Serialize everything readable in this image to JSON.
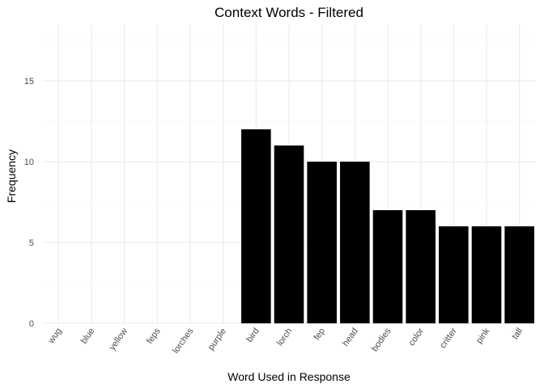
{
  "chart_data": {
    "type": "bar",
    "title": "Context Words - Filtered",
    "xlabel": "Word Used in Response",
    "ylabel": "Frequency",
    "categories": [
      "wug",
      "blue",
      "yellow",
      "feps",
      "lorches",
      "purple",
      "bird",
      "lorch",
      "fep",
      "head",
      "bodies",
      "color",
      "critter",
      "pink",
      "tall"
    ],
    "values": [
      0,
      0,
      0,
      0,
      0,
      0,
      12,
      11,
      10,
      10,
      7,
      7,
      6,
      6,
      6
    ],
    "ylim": [
      0,
      18.5
    ],
    "yticks": [
      0,
      5,
      10,
      15
    ],
    "grid": true,
    "bar_color": "#000000",
    "grid_color": "#ebebeb"
  }
}
